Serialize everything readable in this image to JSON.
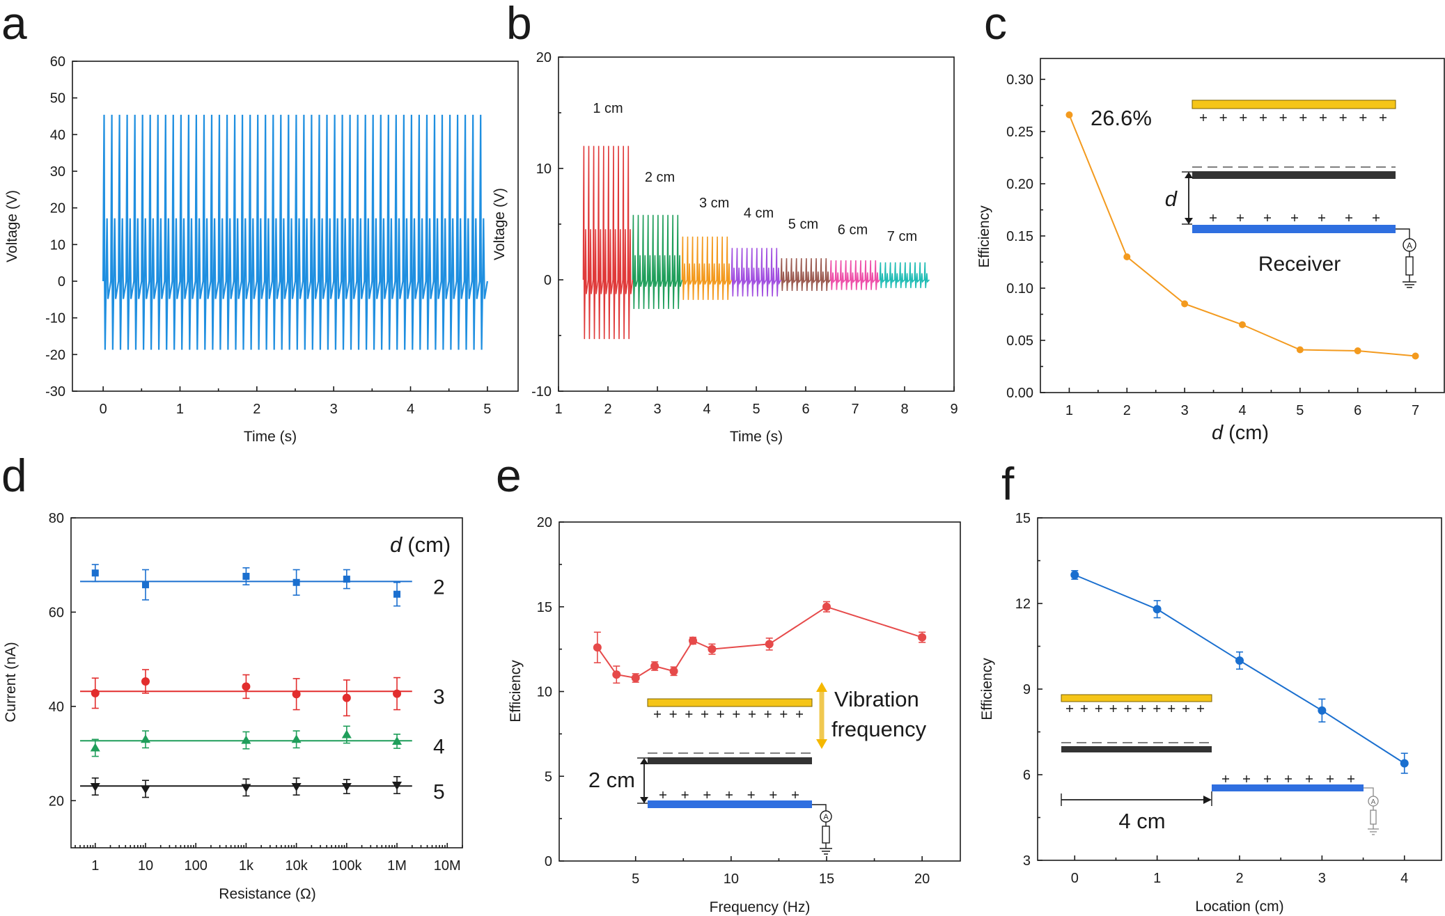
{
  "chart_data": [
    {
      "id": "a",
      "panel": "a",
      "type": "line",
      "xlabel": "Time (s)",
      "ylabel": "Voltage (V)",
      "xlim": [
        -0.4,
        5.4
      ],
      "ylim": [
        -30,
        60
      ],
      "xticks": [
        0,
        1,
        2,
        3,
        4,
        5
      ],
      "yticks": [
        -30,
        -20,
        -10,
        0,
        10,
        20,
        30,
        40,
        50,
        60
      ],
      "xtick_labels": [
        "0",
        "1",
        "2",
        "3",
        "4",
        "5"
      ],
      "ytick_labels": [
        "-30",
        "-20",
        "-10",
        "0",
        "10",
        "20",
        "30",
        "40",
        "50",
        "60"
      ],
      "signal": {
        "color": "#1f8fe0",
        "start": 0.0,
        "end": 5.0,
        "cycles": 50,
        "peak": 49,
        "trough": -23
      }
    },
    {
      "id": "b",
      "panel": "b",
      "type": "line",
      "xlabel": "Time (s)",
      "ylabel": "Voltage (V)",
      "xlim": [
        1,
        9
      ],
      "ylim": [
        -10,
        20
      ],
      "xticks": [
        1,
        2,
        3,
        4,
        5,
        6,
        7,
        8,
        9
      ],
      "yticks": [
        -10,
        0,
        10,
        20
      ],
      "xtick_labels": [
        "1",
        "2",
        "3",
        "4",
        "5",
        "6",
        "7",
        "8",
        "9"
      ],
      "ytick_labels": [
        "-10",
        "0",
        "10",
        "20"
      ],
      "series": [
        {
          "name": "1 cm",
          "start": 1.5,
          "end": 2.5,
          "peak": 13,
          "trough": -6.5,
          "color": "#e03a3a",
          "label_x": 2.0,
          "label_y": 15
        },
        {
          "name": "2 cm",
          "start": 2.5,
          "end": 3.5,
          "peak": 6.3,
          "trough": -3.2,
          "color": "#1f9e5a",
          "label_x": 3.05,
          "label_y": 8.8
        },
        {
          "name": "3 cm",
          "start": 3.5,
          "end": 4.5,
          "peak": 4.2,
          "trough": -2.2,
          "color": "#f39a1e",
          "label_x": 4.15,
          "label_y": 6.5
        },
        {
          "name": "4 cm",
          "start": 4.5,
          "end": 5.5,
          "peak": 3.1,
          "trough": -1.8,
          "color": "#a14fe0",
          "label_x": 5.05,
          "label_y": 5.6
        },
        {
          "name": "5 cm",
          "start": 5.5,
          "end": 6.5,
          "peak": 2.1,
          "trough": -1.2,
          "color": "#9b5a50",
          "label_x": 5.95,
          "label_y": 4.6
        },
        {
          "name": "6 cm",
          "start": 6.5,
          "end": 7.5,
          "peak": 1.9,
          "trough": -1.1,
          "color": "#ee4fa8",
          "label_x": 6.95,
          "label_y": 4.1
        },
        {
          "name": "7 cm",
          "start": 7.5,
          "end": 8.5,
          "peak": 1.7,
          "trough": -0.9,
          "color": "#1fbcb4",
          "label_x": 7.95,
          "label_y": 3.5
        }
      ]
    },
    {
      "id": "c",
      "panel": "c",
      "type": "line",
      "xlabel": "(cm)",
      "xlabel_italic": "d",
      "ylabel": "Efficiency",
      "xlim": [
        0.5,
        7.5
      ],
      "ylim": [
        0,
        0.32
      ],
      "xticks": [
        1,
        2,
        3,
        4,
        5,
        6,
        7
      ],
      "yticks": [
        0,
        0.05,
        0.1,
        0.15,
        0.2,
        0.25,
        0.3
      ],
      "xtick_labels": [
        "1",
        "2",
        "3",
        "4",
        "5",
        "6",
        "7"
      ],
      "ytick_labels": [
        "0.00",
        "0.05",
        "0.10",
        "0.15",
        "0.20",
        "0.25",
        "0.30"
      ],
      "series": [
        {
          "name": "Efficiency",
          "color": "#f39a1e",
          "x": [
            1,
            2,
            3,
            4,
            5,
            6,
            7
          ],
          "y": [
            0.266,
            0.13,
            0.085,
            0.065,
            0.041,
            0.04,
            0.035
          ]
        }
      ],
      "annotations": [
        "26.6%"
      ],
      "inset": {
        "distance_label": "d",
        "receiver_label": "Receiver",
        "ammeter_label": "A"
      }
    },
    {
      "id": "d",
      "panel": "d",
      "type": "scatter",
      "xlabel": "Resistance (Ω)",
      "ylabel": "Current (nA)",
      "xscale": "log",
      "xlim": [
        0.33,
        20000000
      ],
      "ylim": [
        10,
        80
      ],
      "xticks": [
        1,
        10,
        100,
        1000,
        10000,
        100000,
        1000000,
        10000000
      ],
      "xtick_labels": [
        "1",
        "10",
        "100",
        "1k",
        "10k",
        "100k",
        "1M",
        "10M"
      ],
      "yticks": [
        20,
        40,
        60,
        80
      ],
      "ytick_labels": [
        "20",
        "40",
        "60",
        "80"
      ],
      "legend_title_italic": "d",
      "legend_title": "(cm)",
      "fit_range": [
        0.5,
        2000000
      ],
      "series": [
        {
          "name": "2",
          "color": "#1a6fcf",
          "marker": "square",
          "fit": 66.5,
          "x": [
            1,
            10,
            1000,
            10000,
            100000,
            1000000
          ],
          "y": [
            68.3,
            65.8,
            67.6,
            66.3,
            67.0,
            63.8
          ],
          "err": [
            1.8,
            3.2,
            1.8,
            2.7,
            2.0,
            2.5
          ]
        },
        {
          "name": "3",
          "color": "#e22d2d",
          "marker": "circle",
          "fit": 43.2,
          "x": [
            1,
            10,
            1000,
            10000,
            100000,
            1000000
          ],
          "y": [
            42.8,
            45.3,
            44.2,
            42.6,
            41.8,
            42.7
          ],
          "err": [
            3.2,
            2.5,
            2.5,
            3.3,
            3.8,
            3.4
          ]
        },
        {
          "name": "4",
          "color": "#1f9e5a",
          "marker": "triangle-up",
          "fit": 32.7,
          "x": [
            1,
            10,
            1000,
            10000,
            100000,
            1000000
          ],
          "y": [
            31.2,
            33.0,
            32.8,
            33.0,
            34.0,
            32.6
          ],
          "err": [
            1.8,
            1.8,
            1.8,
            1.8,
            1.8,
            1.5
          ]
        },
        {
          "name": "5",
          "color": "#1a1a1a",
          "marker": "triangle-down",
          "fit": 23.1,
          "x": [
            1,
            10,
            1000,
            10000,
            100000,
            1000000
          ],
          "y": [
            23.0,
            22.5,
            22.8,
            23.0,
            23.0,
            23.3
          ],
          "err": [
            1.8,
            1.8,
            1.8,
            1.8,
            1.5,
            1.8
          ]
        }
      ]
    },
    {
      "id": "e",
      "panel": "e",
      "type": "line",
      "xlabel": "Frequency (Hz)",
      "ylabel": "Efficiency",
      "xlim": [
        1,
        22
      ],
      "ylim": [
        0,
        20
      ],
      "xticks": [
        5,
        10,
        15,
        20
      ],
      "yticks": [
        0,
        5,
        10,
        15,
        20
      ],
      "xtick_labels": [
        "5",
        "10",
        "15",
        "20"
      ],
      "ytick_labels": [
        "0",
        "5",
        "10",
        "15",
        "20"
      ],
      "series": [
        {
          "name": "Efficiency",
          "color": "#e64a4a",
          "x": [
            3,
            4,
            5,
            6,
            7,
            8,
            9,
            12,
            15,
            20
          ],
          "y": [
            12.6,
            11.0,
            10.8,
            11.5,
            11.2,
            13.0,
            12.5,
            12.8,
            15.0,
            13.2
          ],
          "err": [
            0.9,
            0.5,
            0.25,
            0.25,
            0.25,
            0.2,
            0.3,
            0.35,
            0.3,
            0.3
          ]
        }
      ],
      "inset": {
        "vibration_line1": "Vibration",
        "vibration_line2": "frequency",
        "distance_label": "2 cm",
        "ammeter_label": "A"
      }
    },
    {
      "id": "f",
      "panel": "f",
      "type": "line",
      "xlabel": "Location (cm)",
      "ylabel": "Efficiency",
      "xlim": [
        -0.45,
        4.45
      ],
      "ylim": [
        3,
        15
      ],
      "xticks": [
        0,
        1,
        2,
        3,
        4
      ],
      "yticks": [
        3,
        6,
        9,
        12,
        15
      ],
      "xtick_labels": [
        "0",
        "1",
        "2",
        "3",
        "4"
      ],
      "ytick_labels": [
        "3",
        "6",
        "9",
        "12",
        "15"
      ],
      "series": [
        {
          "name": "Efficiency",
          "color": "#1a6fcf",
          "x": [
            0,
            1,
            2,
            3,
            4
          ],
          "y": [
            13.0,
            11.8,
            10.0,
            8.25,
            6.4
          ],
          "err": [
            0.15,
            0.3,
            0.3,
            0.4,
            0.35
          ]
        }
      ],
      "inset": {
        "distance_label": "4 cm",
        "ammeter_label": "A"
      }
    }
  ]
}
